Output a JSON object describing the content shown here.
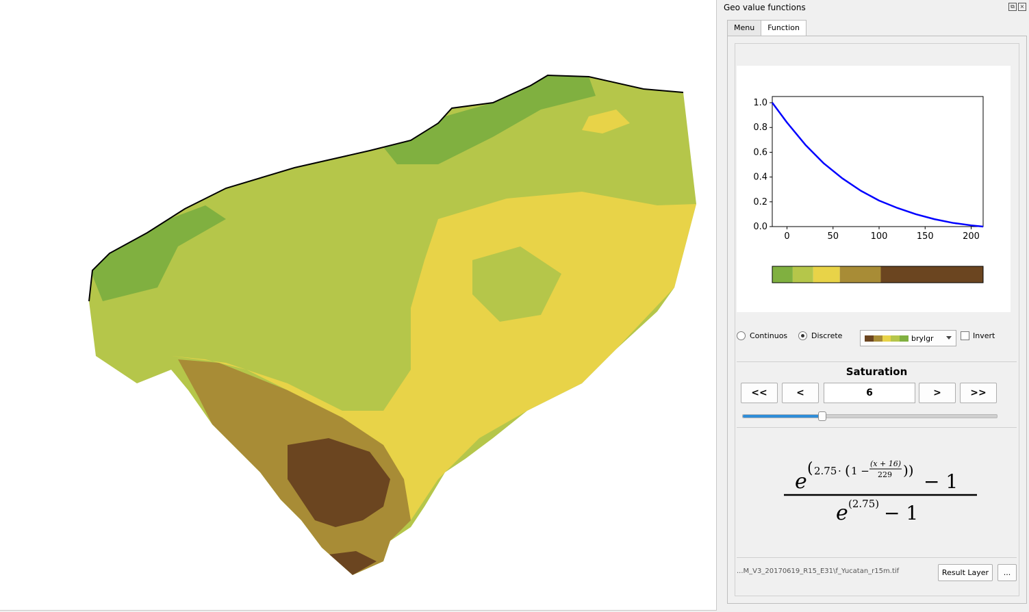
{
  "panel": {
    "title": "Geo value functions",
    "float_icon": "float-icon",
    "close_icon": "close-icon",
    "tabs": [
      {
        "label": "Menu",
        "active": false
      },
      {
        "label": "Function",
        "active": true
      }
    ]
  },
  "chart_data": {
    "type": "line",
    "title": "",
    "xlabel": "",
    "ylabel": "",
    "xlim": [
      -16,
      213
    ],
    "ylim": [
      0.0,
      1.05
    ],
    "x_ticks": [
      "0",
      "50",
      "100",
      "150",
      "200"
    ],
    "y_ticks": [
      "0.0",
      "0.2",
      "0.4",
      "0.6",
      "0.8",
      "1.0"
    ],
    "series": [
      {
        "color": "#0000ff",
        "x": [
          -16,
          0,
          20,
          40,
          60,
          80,
          100,
          120,
          140,
          160,
          180,
          200,
          213
        ],
        "y": [
          1.0,
          0.84,
          0.66,
          0.51,
          0.39,
          0.29,
          0.21,
          0.15,
          0.1,
          0.06,
          0.03,
          0.01,
          0.0
        ]
      }
    ],
    "colorbar": [
      "#80b040",
      "#b5c64a",
      "#e8d348",
      "#a88c36",
      "#6b4520"
    ],
    "colorbar_weights": [
      1,
      1,
      1.3,
      2,
      5
    ]
  },
  "mode": {
    "continuous_label": "Continuos",
    "discrete_label": "Discrete",
    "selected": "discrete"
  },
  "colormap": {
    "name": "brylgr",
    "swatch": [
      "#6b4520",
      "#a88c36",
      "#e8d348",
      "#b5c64a",
      "#80b040"
    ],
    "invert_label": "Invert",
    "invert_checked": false
  },
  "saturation": {
    "title": "Saturation",
    "first_label": "<<",
    "prev_label": "<",
    "value": "6",
    "next_label": ">",
    "last_label": ">>",
    "slider_fraction": 0.31
  },
  "formula": {
    "numerator_inner": "(x + 16)",
    "denominator_inner": "229",
    "coef": "2.75",
    "minus_one": "− 1",
    "den_exp": "(2.75)"
  },
  "footer": {
    "path": "...M_V3_20170619_R15_E31\\f_Yucatan_r15m.tif",
    "result_label": "Result Layer",
    "browse_label": "..."
  },
  "map": {
    "colors": {
      "green": "#80b040",
      "lime": "#b5c64a",
      "yellow": "#e8d348",
      "tan": "#a88c36",
      "brown": "#6b4520"
    }
  }
}
